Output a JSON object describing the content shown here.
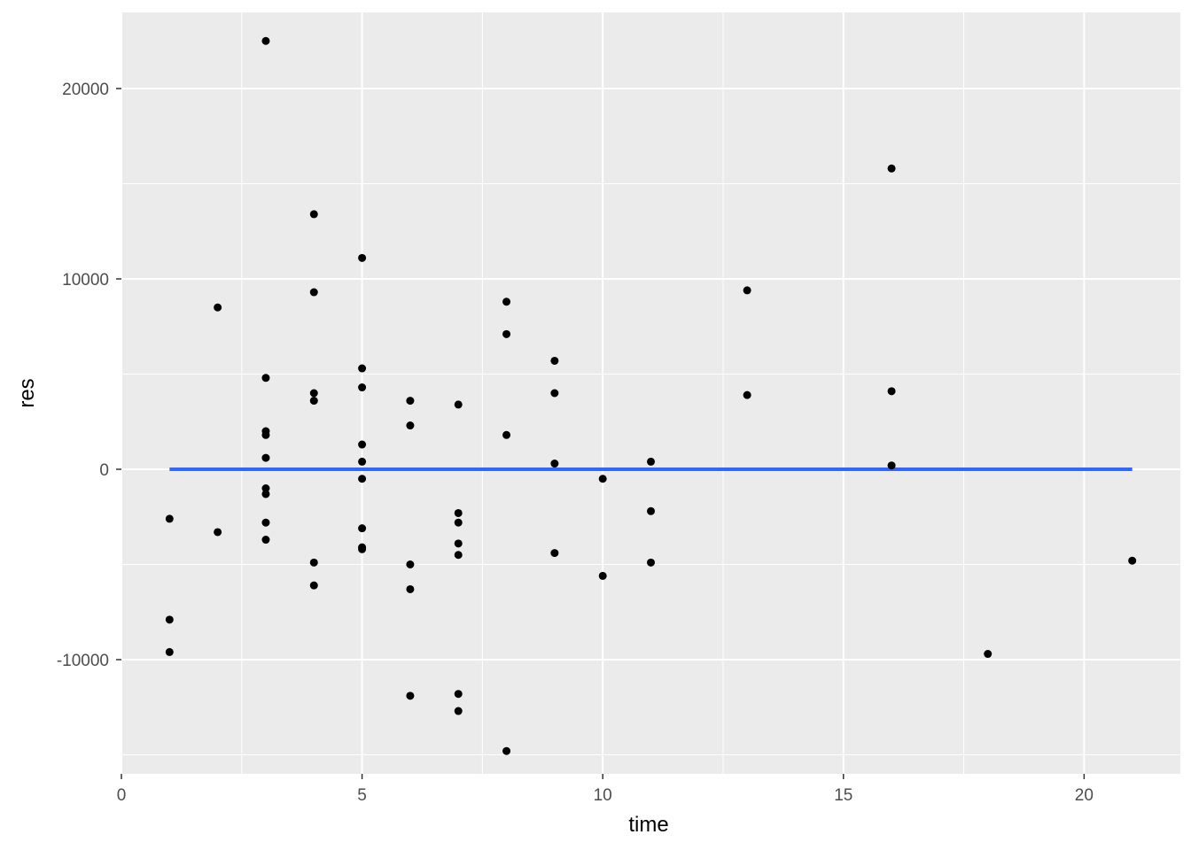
{
  "chart_data": {
    "type": "scatter",
    "title": "",
    "xlabel": "time",
    "ylabel": "res",
    "xlim": [
      0,
      22
    ],
    "ylim": [
      -16000,
      24000
    ],
    "x_ticks": [
      0,
      5,
      10,
      15,
      20
    ],
    "x_tick_labels": [
      "0",
      "5",
      "10",
      "15",
      "20"
    ],
    "y_ticks": [
      -10000,
      0,
      10000,
      20000
    ],
    "y_tick_labels": [
      "-10000",
      "0",
      "10000",
      "20000"
    ],
    "grid": true,
    "legend": "none",
    "colors": {
      "panel": "#ebebeb",
      "grid": "#ffffff",
      "points": "#000000",
      "reference_line": "#3366ff"
    },
    "reference_line": {
      "x": [
        1,
        21
      ],
      "y": [
        0,
        0
      ]
    },
    "points": [
      {
        "x": 1,
        "y": -2600
      },
      {
        "x": 1,
        "y": -7900
      },
      {
        "x": 1,
        "y": -9600
      },
      {
        "x": 2,
        "y": 8500
      },
      {
        "x": 2,
        "y": -3300
      },
      {
        "x": 3,
        "y": 22500
      },
      {
        "x": 3,
        "y": 4800
      },
      {
        "x": 3,
        "y": 2000
      },
      {
        "x": 3,
        "y": 1800
      },
      {
        "x": 3,
        "y": 600
      },
      {
        "x": 3,
        "y": -1000
      },
      {
        "x": 3,
        "y": -1300
      },
      {
        "x": 3,
        "y": -2800
      },
      {
        "x": 3,
        "y": -3700
      },
      {
        "x": 4,
        "y": 13400
      },
      {
        "x": 4,
        "y": 9300
      },
      {
        "x": 4,
        "y": 4000
      },
      {
        "x": 4,
        "y": 3600
      },
      {
        "x": 4,
        "y": -4900
      },
      {
        "x": 4,
        "y": -6100
      },
      {
        "x": 5,
        "y": 11100
      },
      {
        "x": 5,
        "y": 5300
      },
      {
        "x": 5,
        "y": 4300
      },
      {
        "x": 5,
        "y": 1300
      },
      {
        "x": 5,
        "y": 400
      },
      {
        "x": 5,
        "y": -500
      },
      {
        "x": 5,
        "y": -3100
      },
      {
        "x": 5,
        "y": -4100
      },
      {
        "x": 5,
        "y": -4200
      },
      {
        "x": 6,
        "y": 3600
      },
      {
        "x": 6,
        "y": 2300
      },
      {
        "x": 6,
        "y": -5000
      },
      {
        "x": 6,
        "y": -6300
      },
      {
        "x": 6,
        "y": -11900
      },
      {
        "x": 7,
        "y": 3400
      },
      {
        "x": 7,
        "y": -2300
      },
      {
        "x": 7,
        "y": -2800
      },
      {
        "x": 7,
        "y": -3900
      },
      {
        "x": 7,
        "y": -4500
      },
      {
        "x": 7,
        "y": -11800
      },
      {
        "x": 7,
        "y": -12700
      },
      {
        "x": 8,
        "y": 8800
      },
      {
        "x": 8,
        "y": 7100
      },
      {
        "x": 8,
        "y": 1800
      },
      {
        "x": 8,
        "y": -14800
      },
      {
        "x": 9,
        "y": 5700
      },
      {
        "x": 9,
        "y": 4000
      },
      {
        "x": 9,
        "y": 300
      },
      {
        "x": 9,
        "y": -4400
      },
      {
        "x": 10,
        "y": -500
      },
      {
        "x": 10,
        "y": -5600
      },
      {
        "x": 11,
        "y": 400
      },
      {
        "x": 11,
        "y": -2200
      },
      {
        "x": 11,
        "y": -4900
      },
      {
        "x": 13,
        "y": 9400
      },
      {
        "x": 13,
        "y": 3900
      },
      {
        "x": 16,
        "y": 15800
      },
      {
        "x": 16,
        "y": 4100
      },
      {
        "x": 16,
        "y": 200
      },
      {
        "x": 18,
        "y": -9700
      },
      {
        "x": 21,
        "y": -4800
      }
    ]
  }
}
